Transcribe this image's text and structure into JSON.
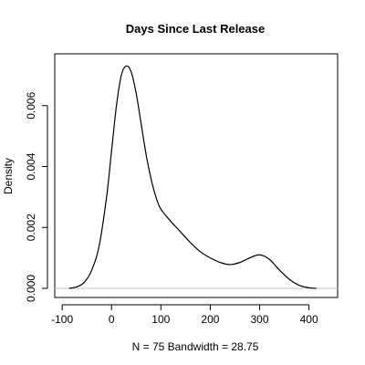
{
  "chart_data": {
    "type": "line",
    "title": "Days Since Last Release",
    "xlabel": "N = 75   Bandwidth = 28.75",
    "ylabel": "Density",
    "xlim": [
      -115,
      458
    ],
    "ylim": [
      -0.0003,
      0.0077
    ],
    "x_ticks": [
      -100,
      0,
      100,
      200,
      300,
      400
    ],
    "x_tick_labels": [
      "-100",
      "0",
      "100",
      "200",
      "300",
      "400"
    ],
    "y_ticks": [
      0.0,
      0.002,
      0.004,
      0.006
    ],
    "y_tick_labels": [
      "0.000",
      "0.002",
      "0.004",
      "0.006"
    ],
    "baseline_color": "#c0c0c0",
    "line_color": "#000000",
    "series": [
      {
        "x": [
          -86,
          -70,
          -55,
          -40,
          -25,
          -10,
          0,
          10,
          20,
          30,
          40,
          50,
          60,
          70,
          80,
          90,
          100,
          120,
          140,
          160,
          180,
          200,
          220,
          240,
          260,
          280,
          300,
          320,
          340,
          360,
          380,
          400,
          415
        ],
        "y": [
          0.0,
          5e-05,
          0.0002,
          0.0006,
          0.0014,
          0.003,
          0.0045,
          0.006,
          0.007,
          0.0073,
          0.0071,
          0.0064,
          0.0054,
          0.0044,
          0.0036,
          0.003,
          0.0026,
          0.0022,
          0.00185,
          0.0015,
          0.0012,
          0.001,
          0.00085,
          0.00078,
          0.00085,
          0.001,
          0.0011,
          0.00095,
          0.0006,
          0.0003,
          0.0001,
          2e-05,
          0.0
        ]
      }
    ]
  }
}
